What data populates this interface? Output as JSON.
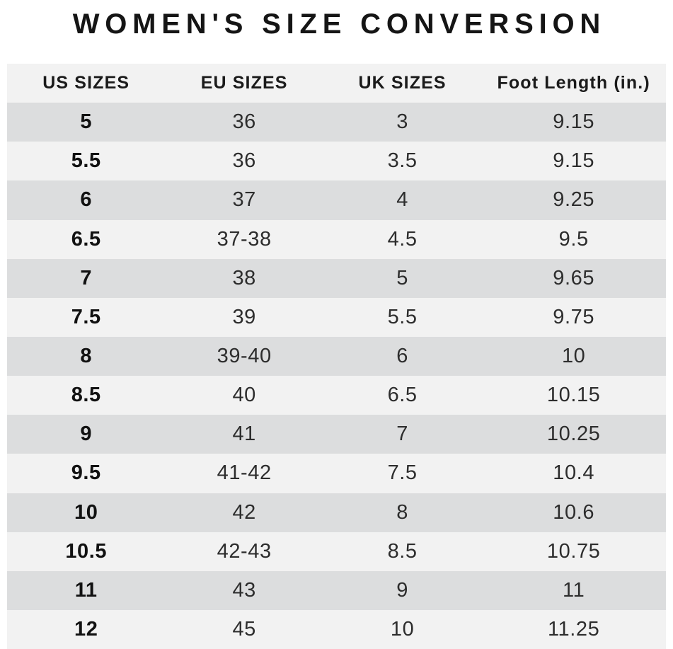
{
  "title": "WOMEN'S SIZE CONVERSION",
  "colors": {
    "row_dark": "#dcddde",
    "row_light": "#f2f2f2",
    "title_text": "#151515",
    "body_text": "#2d2d2d"
  },
  "chart_data": {
    "type": "table",
    "title": "WOMEN'S SIZE CONVERSION",
    "columns": [
      "US SIZES",
      "EU SIZES",
      "UK SIZES",
      "Foot Length (in.)"
    ],
    "rows": [
      [
        "5",
        "36",
        "3",
        "9.15"
      ],
      [
        "5.5",
        "36",
        "3.5",
        "9.15"
      ],
      [
        "6",
        "37",
        "4",
        "9.25"
      ],
      [
        "6.5",
        "37-38",
        "4.5",
        "9.5"
      ],
      [
        "7",
        "38",
        "5",
        "9.65"
      ],
      [
        "7.5",
        "39",
        "5.5",
        "9.75"
      ],
      [
        "8",
        "39-40",
        "6",
        "10"
      ],
      [
        "8.5",
        "40",
        "6.5",
        "10.15"
      ],
      [
        "9",
        "41",
        "7",
        "10.25"
      ],
      [
        "9.5",
        "41-42",
        "7.5",
        "10.4"
      ],
      [
        "10",
        "42",
        "8",
        "10.6"
      ],
      [
        "10.5",
        "42-43",
        "8.5",
        "10.75"
      ],
      [
        "11",
        "43",
        "9",
        "11"
      ],
      [
        "12",
        "45",
        "10",
        "11.25"
      ]
    ],
    "layout": {
      "header_background": "light",
      "row_striping": "alternating dark/light starting dark",
      "column_alignment": "center"
    }
  }
}
